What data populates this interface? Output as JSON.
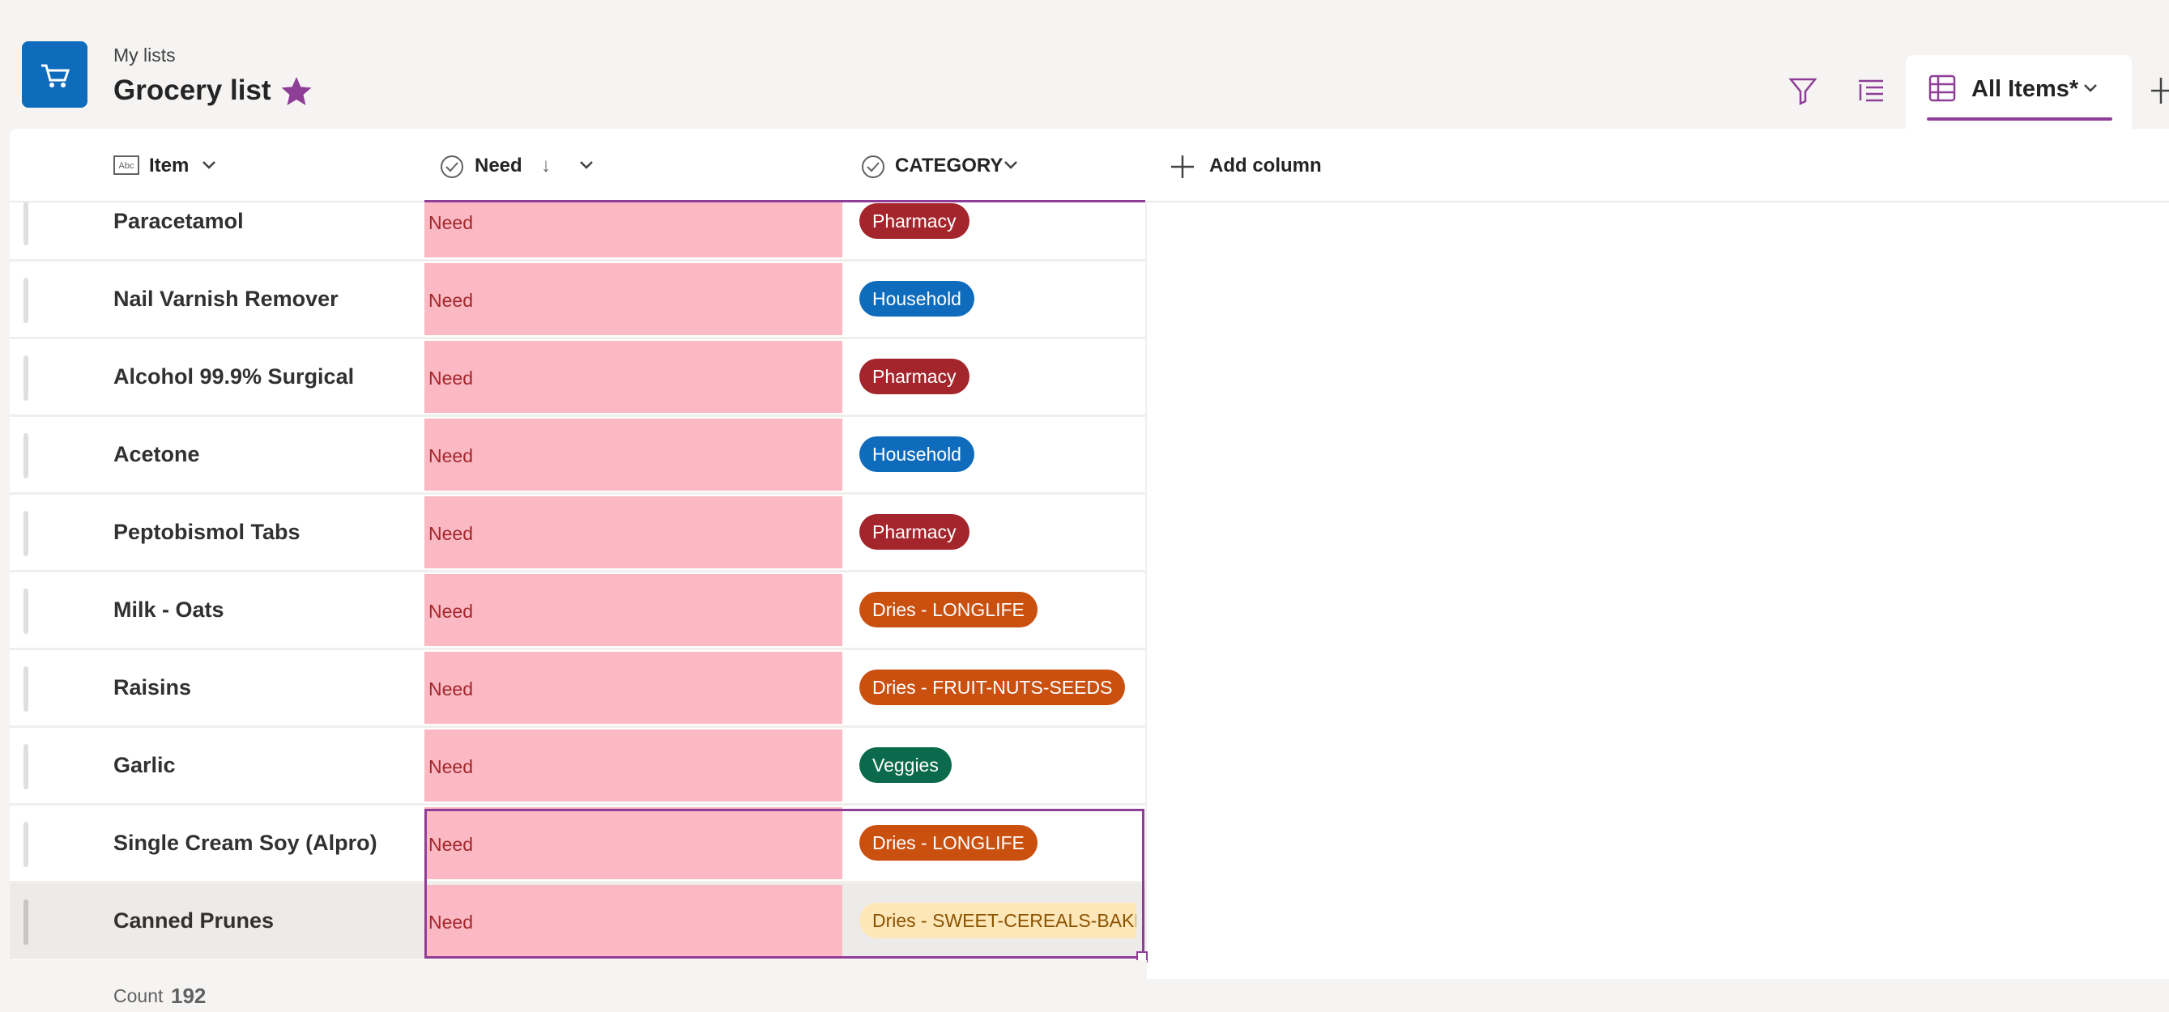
{
  "header": {
    "breadcrumb": "My lists",
    "title": "Grocery list"
  },
  "view": {
    "name": "All Items*"
  },
  "columns": [
    {
      "label": "Item"
    },
    {
      "label": "Need",
      "sort": "↓"
    },
    {
      "label": "CATEGORY"
    }
  ],
  "add_column": "Add column",
  "rows": [
    {
      "item": "Paracetamol",
      "need": "Need",
      "category": "Pharmacy",
      "category_color": "#a4262c"
    },
    {
      "item": "Nail Varnish Remover",
      "need": "Need",
      "category": "Household",
      "category_color": "#0f6cbd"
    },
    {
      "item": "Alcohol 99.9% Surgical",
      "need": "Need",
      "category": "Pharmacy",
      "category_color": "#a4262c"
    },
    {
      "item": "Acetone",
      "need": "Need",
      "category": "Household",
      "category_color": "#0f6cbd"
    },
    {
      "item": "Peptobismol Tabs",
      "need": "Need",
      "category": "Pharmacy",
      "category_color": "#a4262c"
    },
    {
      "item": "Milk - Oats",
      "need": "Need",
      "category": "Dries - LONGLIFE",
      "category_color": "#ca5010"
    },
    {
      "item": "Raisins",
      "need": "Need",
      "category": "Dries - FRUIT-NUTS-SEEDS",
      "category_color": "#ca5010"
    },
    {
      "item": "Garlic",
      "need": "Need",
      "category": "Veggies",
      "category_color": "#0b6a4b"
    },
    {
      "item": "Single Cream Soy (Alpro)",
      "need": "Need",
      "category": "Dries - LONGLIFE",
      "category_color": "#ca5010"
    },
    {
      "item": "Canned Prunes",
      "need": "Need",
      "category": "Dries - SWEET-CEREALS-BAKIN",
      "category_color": "#fde7b8"
    }
  ],
  "footer": {
    "label": "Count",
    "count": "192"
  }
}
